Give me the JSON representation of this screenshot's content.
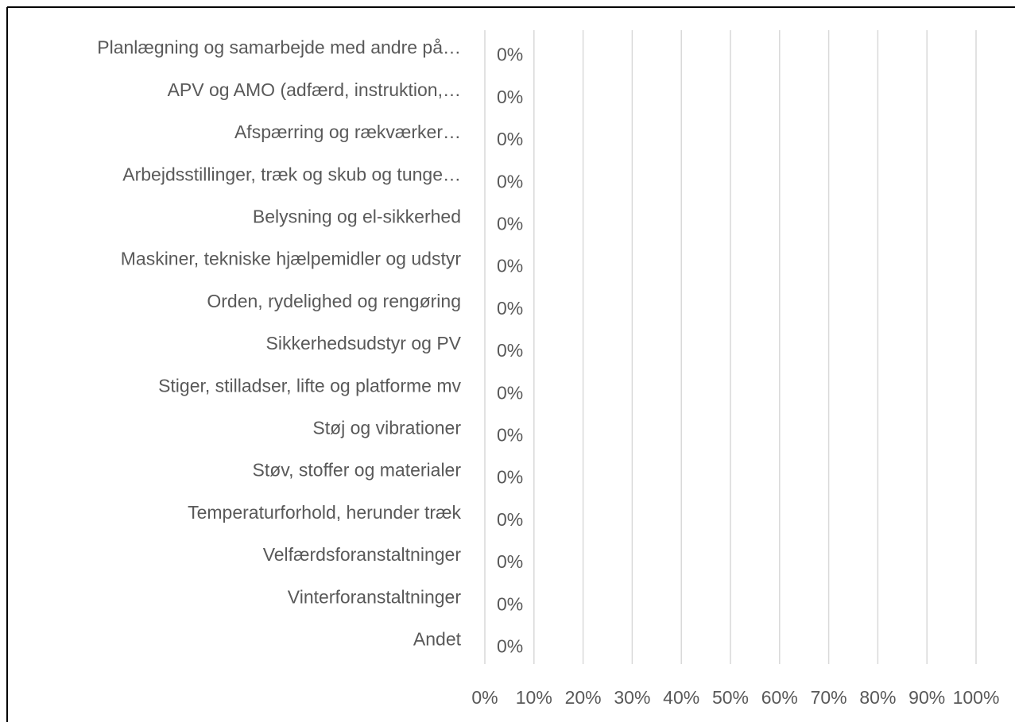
{
  "chart_data": {
    "type": "bar",
    "orientation": "horizontal",
    "categories": [
      "Planlægning og samarbejde med andre på…",
      "APV og AMO (adfærd, instruktion,…",
      "Afspærring og rækværker…",
      "Arbejdsstillinger, træk og skub og tunge…",
      "Belysning og el-sikkerhed",
      "Maskiner, tekniske hjælpemidler og udstyr",
      "Orden, rydelighed og rengøring",
      "Sikkerhedsudstyr og PV",
      "Stiger, stilladser, lifte og platforme mv",
      "Støj og vibrationer",
      "Støv, stoffer og materialer",
      "Temperaturforhold, herunder træk",
      "Velfærdsforanstaltninger",
      "Vinterforanstaltninger",
      "Andet"
    ],
    "values": [
      0,
      0,
      0,
      0,
      0,
      0,
      0,
      0,
      0,
      0,
      0,
      0,
      0,
      0,
      0
    ],
    "value_labels": [
      "0%",
      "0%",
      "0%",
      "0%",
      "0%",
      "0%",
      "0%",
      "0%",
      "0%",
      "0%",
      "0%",
      "0%",
      "0%",
      "0%",
      "0%"
    ],
    "color": "#4472c4",
    "xlim": [
      0,
      100
    ],
    "xticks": [
      {
        "value": 0,
        "label": "0%"
      },
      {
        "value": 10,
        "label": "10%"
      },
      {
        "value": 20,
        "label": "20%"
      },
      {
        "value": 30,
        "label": "30%"
      },
      {
        "value": 40,
        "label": "40%"
      },
      {
        "value": 50,
        "label": "50%"
      },
      {
        "value": 60,
        "label": "60%"
      },
      {
        "value": 70,
        "label": "70%"
      },
      {
        "value": 80,
        "label": "80%"
      },
      {
        "value": 90,
        "label": "90%"
      },
      {
        "value": 100,
        "label": "100%"
      }
    ],
    "grid": true
  }
}
